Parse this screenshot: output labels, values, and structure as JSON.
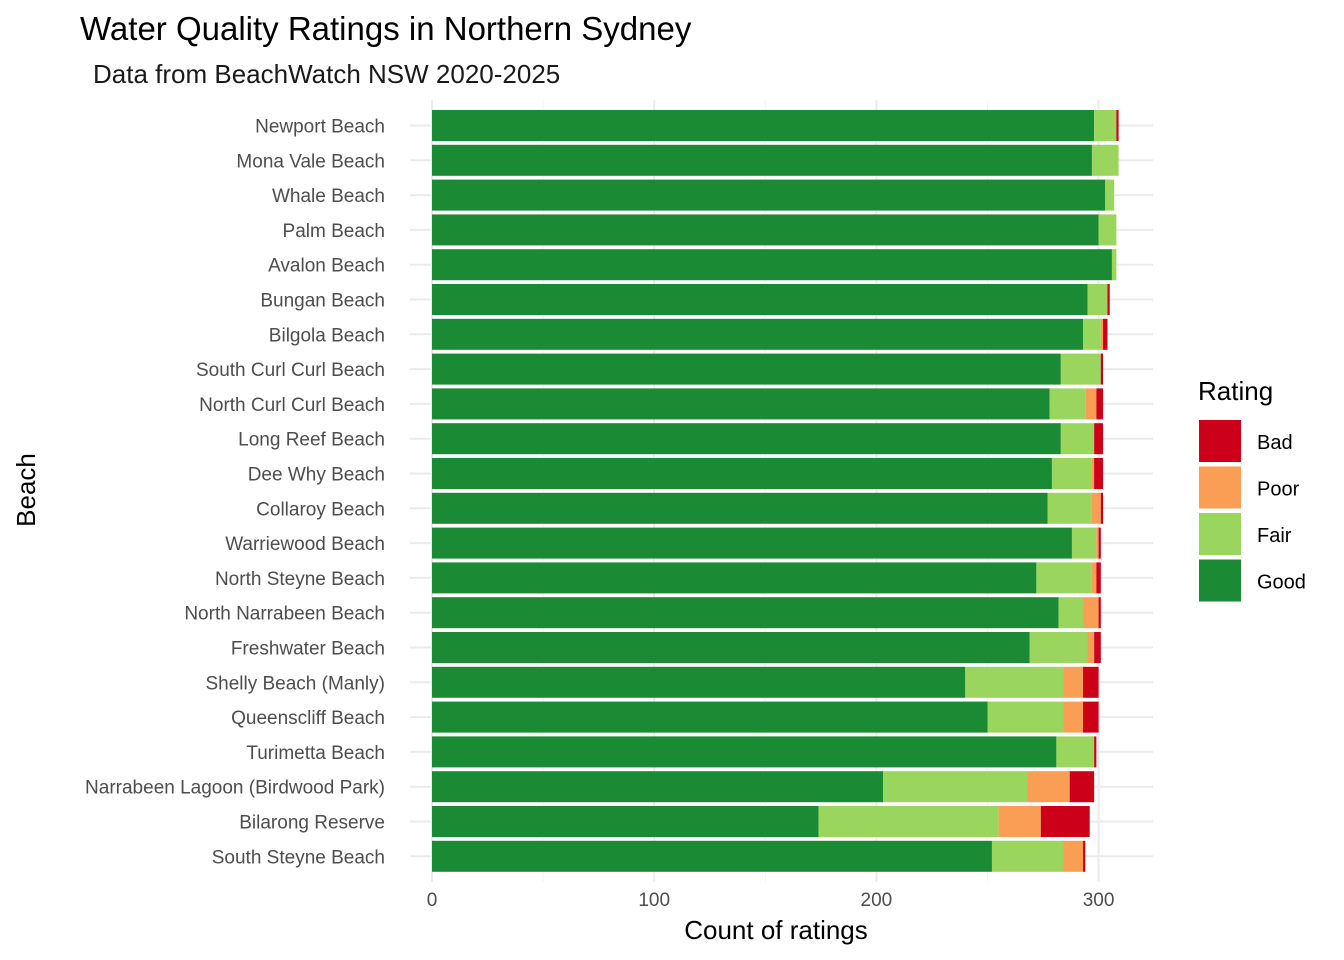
{
  "chart_data": {
    "type": "bar",
    "orientation": "horizontal",
    "stacked": true,
    "title": "Water Quality Ratings in Northern Sydney",
    "subtitle": "Data from BeachWatch NSW 2020-2025",
    "xlabel": "Count of ratings",
    "ylabel": "Beach",
    "xlim": [
      0,
      325
    ],
    "xticks": [
      0,
      100,
      200,
      300
    ],
    "grid": true,
    "legend": {
      "title": "Rating",
      "position": "right",
      "entries": [
        "Bad",
        "Poor",
        "Fair",
        "Good"
      ]
    },
    "categories": [
      "Newport Beach",
      "Mona Vale Beach",
      "Whale Beach",
      "Palm Beach",
      "Avalon Beach",
      "Bungan Beach",
      "Bilgola Beach",
      "South Curl Curl Beach",
      "North Curl Curl Beach",
      "Long Reef Beach",
      "Dee Why Beach",
      "Collaroy Beach",
      "Warriewood Beach",
      "North Steyne Beach",
      "North Narrabeen Beach",
      "Freshwater Beach",
      "Shelly Beach (Manly)",
      "Queenscliff Beach",
      "Turimetta Beach",
      "Narrabeen Lagoon (Birdwood Park)",
      "Bilarong Reserve",
      "South Steyne Beach"
    ],
    "series": [
      {
        "name": "Good",
        "color": "#1b8a34",
        "values": [
          298,
          297,
          303,
          300,
          306,
          295,
          293,
          283,
          278,
          283,
          279,
          277,
          288,
          272,
          282,
          269,
          240,
          250,
          281,
          203,
          174,
          252
        ]
      },
      {
        "name": "Fair",
        "color": "#9ad65d",
        "values": [
          10,
          12,
          4,
          8,
          2,
          9,
          8,
          18,
          16,
          15,
          18,
          20,
          11,
          25,
          11,
          26,
          44,
          34,
          17,
          65,
          81,
          32
        ]
      },
      {
        "name": "Poor",
        "color": "#fa9e56",
        "values": [
          0,
          0,
          0,
          0,
          0,
          0,
          1,
          0,
          5,
          0,
          1,
          4,
          1,
          2,
          7,
          3,
          9,
          9,
          0,
          19,
          19,
          9
        ]
      },
      {
        "name": "Bad",
        "color": "#cc0019",
        "values": [
          1,
          0,
          0,
          0,
          0,
          1,
          2,
          1,
          3,
          4,
          4,
          1,
          1,
          2,
          1,
          3,
          7,
          7,
          1,
          11,
          22,
          1
        ]
      }
    ]
  }
}
